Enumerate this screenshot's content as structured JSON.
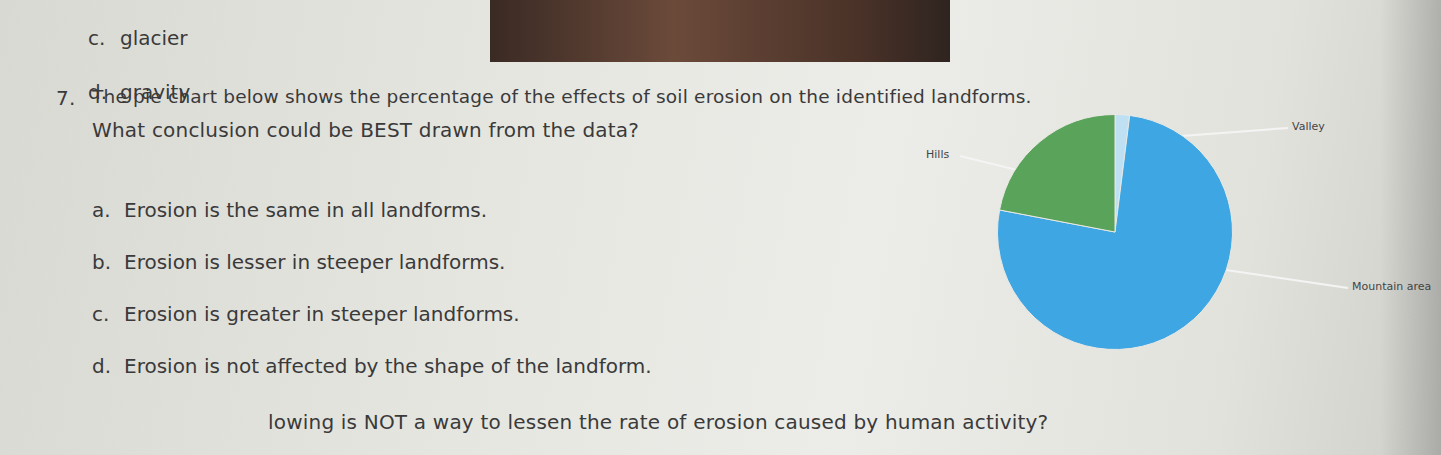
{
  "previous_options": [
    {
      "letter": "c.",
      "text": "glacier"
    },
    {
      "letter": "d.",
      "text": "gravity"
    }
  ],
  "question": {
    "number": "7.",
    "lines": [
      "The pie chart below shows the percentage of the effects of soil erosion on the identified landforms.",
      "What conclusion could be BEST drawn from the data?"
    ],
    "options": [
      {
        "letter": "a.",
        "text": "Erosion is the same in all landforms."
      },
      {
        "letter": "b.",
        "text": "Erosion is lesser in steeper landforms."
      },
      {
        "letter": "c.",
        "text": "Erosion is greater in steeper landforms."
      },
      {
        "letter": "d.",
        "text": "Erosion is not affected by the shape of the landform."
      }
    ]
  },
  "next_question": "lowing is NOT a way to lessen the rate of erosion caused by human activity?",
  "chart_data": {
    "type": "pie",
    "categories": [
      "Valley",
      "Mountain area",
      "Hills"
    ],
    "values": [
      2,
      76,
      22
    ],
    "colors": [
      "#bfe0f2",
      "#3ea6e2",
      "#5aa35a"
    ]
  }
}
